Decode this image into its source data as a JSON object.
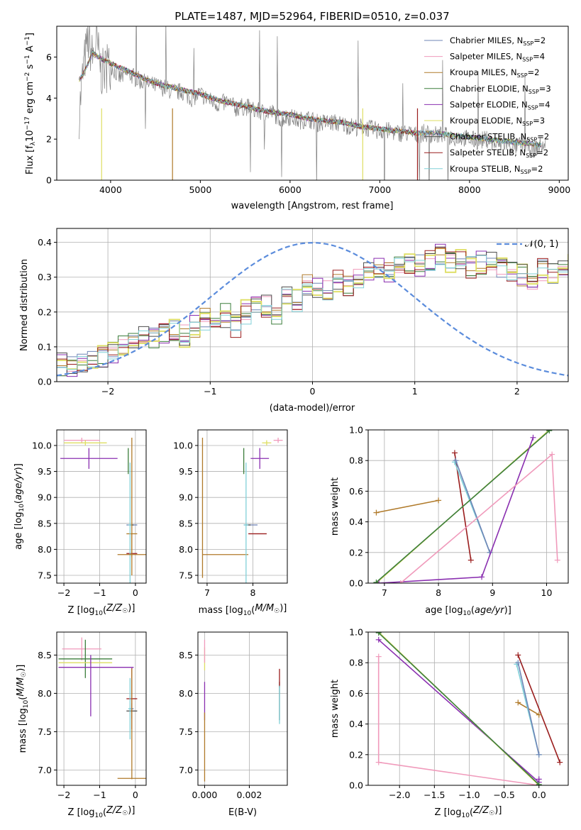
{
  "colors": [
    "#6f85b6",
    "#f09abb",
    "#b07a2a",
    "#3c7e3c",
    "#8a2fb0",
    "#dede62",
    "#4d4d4d",
    "#9a1d1d",
    "#80d0d8"
  ],
  "chart_data": [
    {
      "type": "line",
      "title": "PLATE=1487, MJD=52964, FIBERID=0510, z=0.037",
      "xlabel": "wavelength [Angstrom, rest frame]",
      "ylabel": "Flux [f_λ10^-17 erg cm^-2 s^-1 A^-1]",
      "xlim": [
        3400,
        9100
      ],
      "ylim": [
        0,
        7.5
      ],
      "xticks": [
        4000,
        5000,
        6000,
        7000,
        8000,
        9000
      ],
      "yticks": [
        0,
        2,
        4,
        6
      ],
      "data_color": "#808080",
      "data": {
        "x": [
          3650,
          3700,
          3750,
          3800,
          3850,
          3900,
          4000,
          4100,
          4200,
          4300,
          4400,
          4500,
          4600,
          4700,
          4800,
          4900,
          5000,
          5100,
          5200,
          5300,
          5400,
          5500,
          5600,
          5700,
          5800,
          5900,
          6000,
          6100,
          6200,
          6300,
          6400,
          6500,
          6600,
          6700,
          6800,
          6900,
          7000,
          7100,
          7200,
          7300,
          7400,
          7500,
          7600,
          7700,
          7800,
          7900,
          8000,
          8100,
          8200,
          8300,
          8400,
          8500,
          8600,
          8700,
          8800,
          8850
        ],
        "y": [
          3.2,
          5.6,
          6.8,
          6.0,
          6.6,
          5.2,
          5.6,
          5.0,
          5.2,
          4.9,
          4.7,
          4.6,
          4.5,
          4.3,
          4.3,
          4.0,
          4.2,
          3.9,
          3.7,
          3.8,
          3.5,
          3.6,
          3.4,
          3.3,
          3.3,
          3.0,
          3.1,
          2.9,
          3.0,
          2.8,
          2.8,
          2.8,
          2.7,
          2.6,
          2.6,
          2.5,
          2.4,
          2.4,
          2.3,
          2.3,
          2.2,
          2.3,
          2.2,
          2.2,
          2.1,
          2.1,
          2.0,
          1.9,
          2.0,
          1.7,
          1.8,
          1.6,
          1.8,
          1.5,
          1.7,
          1.6
        ]
      },
      "series": [
        {
          "name": "Chabrier MILES, N_SSP=2"
        },
        {
          "name": "Salpeter MILES, N_SSP=4"
        },
        {
          "name": "Kroupa MILES, N_SSP=2"
        },
        {
          "name": "Chabrier ELODIE, N_SSP=3"
        },
        {
          "name": "Salpeter ELODIE, N_SSP=4"
        },
        {
          "name": "Kroupa ELODIE, N_SSP=3"
        },
        {
          "name": "Chabrier STELIB, N_SSP=2"
        },
        {
          "name": "Salpeter STELIB, N_SSP=2"
        },
        {
          "name": "Kroupa STELIB, N_SSP=2"
        }
      ],
      "model": {
        "x": [
          3650,
          3700,
          3800,
          3900,
          4000,
          4200,
          4400,
          4600,
          4800,
          5000,
          5200,
          5400,
          5600,
          5800,
          6000,
          6200,
          6400,
          6600,
          6800,
          7000,
          7200,
          7400,
          7600,
          7800,
          8000,
          8200,
          8400,
          8600,
          8800
        ],
        "y": [
          4.9,
          5.2,
          6.2,
          5.9,
          5.7,
          5.3,
          4.9,
          4.6,
          4.4,
          4.2,
          3.9,
          3.7,
          3.5,
          3.3,
          3.2,
          3.0,
          2.9,
          2.8,
          2.6,
          2.5,
          2.4,
          2.3,
          2.3,
          2.2,
          2.1,
          2.0,
          1.9,
          1.8,
          1.7
        ]
      }
    },
    {
      "type": "histogram",
      "xlabel": "(data-model)/error",
      "ylabel": "Normed distribution",
      "xlim": [
        -2.5,
        2.5
      ],
      "ylim": [
        0,
        0.44
      ],
      "xticks": [
        -2,
        -1,
        0,
        1,
        2
      ],
      "yticks": [
        0.0,
        0.1,
        0.2,
        0.3,
        0.4
      ],
      "bin_start": -2.5,
      "bin_width": 0.1,
      "base_values": [
        0.05,
        0.04,
        0.06,
        0.07,
        0.07,
        0.08,
        0.1,
        0.11,
        0.13,
        0.12,
        0.14,
        0.15,
        0.13,
        0.16,
        0.18,
        0.17,
        0.19,
        0.16,
        0.2,
        0.21,
        0.22,
        0.19,
        0.24,
        0.23,
        0.28,
        0.27,
        0.26,
        0.29,
        0.28,
        0.3,
        0.31,
        0.32,
        0.31,
        0.33,
        0.34,
        0.33,
        0.35,
        0.36,
        0.34,
        0.35,
        0.33,
        0.34,
        0.35,
        0.33,
        0.32,
        0.31,
        0.3,
        0.32,
        0.31,
        0.34,
        0.33,
        0.32,
        0.3,
        0.31,
        0.29,
        0.27,
        0.26,
        0.25,
        0.26,
        0.23,
        0.22,
        0.21,
        0.2,
        0.19,
        0.18,
        0.17,
        0.15,
        0.16,
        0.14,
        0.13,
        0.12,
        0.11,
        0.1,
        0.11,
        0.09,
        0.1,
        0.08,
        0.07,
        0.08,
        0.07,
        0.06,
        0.07,
        0.06,
        0.05,
        0.06,
        0.05,
        0.05,
        0.04,
        0.05,
        0.04,
        0.03,
        0.04,
        0.03,
        0.03,
        0.04,
        0.03,
        0.03,
        0.02,
        0.03,
        0.02
      ],
      "normal": {
        "name": "𝒩(0, 1)",
        "color": "#5b8cdc"
      }
    },
    {
      "type": "scatter",
      "xlabel": "Z [log10(Z/Z☉)]",
      "ylabel": "age  [log10(age/yr)]",
      "xlim": [
        -2.2,
        0.3
      ],
      "ylim": [
        7.35,
        10.3
      ],
      "xticks": [
        -2,
        -1,
        0
      ],
      "yticks": [
        7.5,
        8.0,
        8.5,
        9.0,
        9.5,
        10.0,
        10.5
      ],
      "points": [
        {
          "c": 0,
          "x": -0.1,
          "y": 8.47,
          "xe": 0.15,
          "ye": 0.0
        },
        {
          "c": 1,
          "x": -1.5,
          "y": 10.1,
          "xe": 0.5,
          "ye": 0.05
        },
        {
          "c": 2,
          "x": -0.1,
          "y": 8.3,
          "xe": 0.15,
          "ye": 0.0
        },
        {
          "c": 3,
          "x": -0.2,
          "y": 9.7,
          "xe": 0.0,
          "ye": 0.25
        },
        {
          "c": 4,
          "x": -1.3,
          "y": 9.75,
          "xe": 0.8,
          "ye": 0.2
        },
        {
          "c": 5,
          "x": -1.4,
          "y": 10.05,
          "xe": 0.6,
          "ye": 0.05
        },
        {
          "c": 6,
          "x": -0.1,
          "y": 8.47,
          "xe": 0.05,
          "ye": 0.0
        },
        {
          "c": 7,
          "x": -0.1,
          "y": 7.92,
          "xe": 0.15,
          "ye": 0.0
        },
        {
          "c": 8,
          "x": -0.15,
          "y": 8.47,
          "xe": 0.05,
          "ye": 1.2
        },
        {
          "c": 2,
          "x": -0.1,
          "y": 7.9,
          "xe": 0.4,
          "ye": 0.4
        },
        {
          "c": 2,
          "x": -0.1,
          "y": 9.0,
          "xe": 0.0,
          "ye": 1.15
        }
      ]
    },
    {
      "type": "scatter",
      "xlabel": "mass [log10(M/M☉)]",
      "ylabel": "",
      "xlim": [
        6.8,
        8.75
      ],
      "ylim": [
        7.35,
        10.3
      ],
      "xticks": [
        7,
        8
      ],
      "yticks": [
        7.5,
        8.0,
        8.5,
        9.0,
        9.5,
        10.0,
        10.5
      ],
      "points": [
        {
          "c": 0,
          "x": 7.95,
          "y": 8.47,
          "xe": 0.15,
          "ye": 0.0
        },
        {
          "c": 1,
          "x": 8.55,
          "y": 10.1,
          "xe": 0.1,
          "ye": 0.05
        },
        {
          "c": 2,
          "x": 7.4,
          "y": 7.9,
          "xe": 0.5,
          "ye": 0.0
        },
        {
          "c": 3,
          "x": 7.8,
          "y": 9.7,
          "xe": 0.0,
          "ye": 0.25
        },
        {
          "c": 4,
          "x": 8.15,
          "y": 9.75,
          "xe": 0.2,
          "ye": 0.2
        },
        {
          "c": 5,
          "x": 8.3,
          "y": 10.05,
          "xe": 0.1,
          "ye": 0.05
        },
        {
          "c": 6,
          "x": 7.9,
          "y": 8.47,
          "xe": 0.05,
          "ye": 0.0
        },
        {
          "c": 7,
          "x": 8.1,
          "y": 8.3,
          "xe": 0.2,
          "ye": 0.0
        },
        {
          "c": 8,
          "x": 7.85,
          "y": 8.47,
          "xe": 0.05,
          "ye": 1.2
        },
        {
          "c": 2,
          "x": 6.9,
          "y": 8.8,
          "xe": 0.0,
          "ye": 1.35
        }
      ]
    },
    {
      "type": "line",
      "xlabel": "age  [log10(age/yr)]",
      "ylabel": "mass weight",
      "xlim": [
        6.7,
        10.4
      ],
      "ylim": [
        0,
        1.0
      ],
      "xticks": [
        7,
        8,
        9,
        10
      ],
      "yticks": [
        0.0,
        0.2,
        0.4,
        0.6,
        0.8,
        1.0
      ],
      "lines": [
        {
          "c": 2,
          "x": [
            6.85,
            8.0
          ],
          "y": [
            0.46,
            0.54
          ]
        },
        {
          "c": 7,
          "x": [
            8.3,
            8.6
          ],
          "y": [
            0.85,
            0.15
          ]
        },
        {
          "c": 8,
          "x": [
            8.3,
            8.95
          ],
          "y": [
            0.79,
            0.2
          ]
        },
        {
          "c": 0,
          "x": [
            8.32,
            8.95
          ],
          "y": [
            0.8,
            0.2
          ]
        },
        {
          "c": 5,
          "x": [
            6.85,
            10.05
          ],
          "y": [
            0.0,
            1.0
          ]
        },
        {
          "c": 3,
          "x": [
            6.85,
            10.05
          ],
          "y": [
            0.005,
            0.995
          ]
        },
        {
          "c": 4,
          "x": [
            6.9,
            8.8,
            9.75
          ],
          "y": [
            0.0,
            0.04,
            0.95
          ]
        },
        {
          "c": 1,
          "x": [
            7.3,
            10.1,
            10.2
          ],
          "y": [
            0.0,
            0.84,
            0.15
          ]
        }
      ]
    },
    {
      "type": "scatter",
      "xlabel": "Z [log10(Z/Z☉)]",
      "ylabel": "mass [log10(M/M☉)]",
      "xlim": [
        -2.2,
        0.3
      ],
      "ylim": [
        6.8,
        8.8
      ],
      "xticks": [
        -2,
        -1,
        0
      ],
      "yticks": [
        7.0,
        7.5,
        8.0,
        8.5
      ],
      "points": [
        {
          "c": 0,
          "x": -0.1,
          "y": 7.8,
          "xe": 0.05,
          "ye": 0.0
        },
        {
          "c": 1,
          "x": -1.5,
          "y": 8.58,
          "xe": 0.55,
          "ye": 0.15
        },
        {
          "c": 2,
          "x": -0.1,
          "y": 6.89,
          "xe": 0.4,
          "ye": 0.0
        },
        {
          "c": 3,
          "x": -1.4,
          "y": 8.45,
          "xe": 0.75,
          "ye": 0.25
        },
        {
          "c": 4,
          "x": -1.1,
          "y": 8.34,
          "xe": 1.05,
          "ye": 0.0
        },
        {
          "c": 5,
          "x": -1.4,
          "y": 8.4,
          "xe": 0.75,
          "ye": 0.0
        },
        {
          "c": 6,
          "x": -0.1,
          "y": 7.77,
          "xe": 0.15,
          "ye": 0.1
        },
        {
          "c": 7,
          "x": -0.1,
          "y": 7.93,
          "xe": 0.15,
          "ye": 0.4
        },
        {
          "c": 8,
          "x": -0.15,
          "y": 7.8,
          "xe": 0.05,
          "ye": 0.4
        },
        {
          "c": 4,
          "x": -1.25,
          "y": 8.1,
          "xe": 0.0,
          "ye": 0.4
        },
        {
          "c": 2,
          "x": -0.1,
          "y": 7.6,
          "xe": 0.0,
          "ye": 0.72
        }
      ]
    },
    {
      "type": "scatter",
      "xlabel": "E(B-V)",
      "ylabel": "",
      "xlim": [
        -0.0003,
        0.0037
      ],
      "ylim": [
        6.8,
        8.8
      ],
      "xticks": [
        0.0,
        0.002
      ],
      "yticks": [
        7.0,
        7.5,
        8.0,
        8.5
      ],
      "xticklabels": [
        "0.000",
        "0.002"
      ],
      "points": [
        {
          "c": 5,
          "x": 0.0,
          "y": 8.45,
          "xe": 0.0,
          "ye": 0.15
        },
        {
          "c": 4,
          "x": 0.0,
          "y": 7.9,
          "xe": 0.0,
          "ye": 0.25
        },
        {
          "c": 1,
          "x": 0.0,
          "y": 8.55,
          "xe": 0.0,
          "ye": 0.15
        },
        {
          "c": 2,
          "x": 0.0,
          "y": 7.3,
          "xe": 0.0,
          "ye": 0.45
        },
        {
          "c": 6,
          "x": 0.00335,
          "y": 7.9,
          "xe": 0.0,
          "ye": 0.25
        },
        {
          "c": 7,
          "x": 0.00335,
          "y": 8.2,
          "xe": 0.0,
          "ye": 0.12
        },
        {
          "c": 8,
          "x": 0.00335,
          "y": 7.85,
          "xe": 0.0,
          "ye": 0.25
        }
      ]
    },
    {
      "type": "line",
      "xlabel": "Z [log10(Z/Z☉)]",
      "ylabel": "mass weight",
      "xlim": [
        -2.45,
        0.42
      ],
      "ylim": [
        0,
        1.0
      ],
      "xticks": [
        -2.0,
        -1.5,
        -1.0,
        -0.5,
        0.0
      ],
      "xticklabels": [
        "−2.0",
        "−1.5",
        "−1.0",
        "−0.5",
        "0.0"
      ],
      "yticks": [
        0.0,
        0.2,
        0.4,
        0.6,
        0.8,
        1.0
      ],
      "lines": [
        {
          "c": 1,
          "x": [
            -2.3,
            -2.3,
            0.0
          ],
          "y": [
            0.84,
            0.15,
            0.0
          ]
        },
        {
          "c": 4,
          "x": [
            -2.3,
            0.0,
            0.0
          ],
          "y": [
            0.95,
            0.02,
            0.04
          ]
        },
        {
          "c": 5,
          "x": [
            -2.3,
            0.0
          ],
          "y": [
            1.0,
            0.0
          ]
        },
        {
          "c": 3,
          "x": [
            -2.3,
            0.0
          ],
          "y": [
            0.995,
            0.005
          ]
        },
        {
          "c": 7,
          "x": [
            -0.3,
            0.3
          ],
          "y": [
            0.85,
            0.15
          ]
        },
        {
          "c": 2,
          "x": [
            -0.3,
            0.0
          ],
          "y": [
            0.54,
            0.46
          ]
        },
        {
          "c": 8,
          "x": [
            -0.32,
            0.0
          ],
          "y": [
            0.79,
            0.2
          ]
        },
        {
          "c": 0,
          "x": [
            -0.3,
            0.0
          ],
          "y": [
            0.8,
            0.2
          ]
        }
      ]
    }
  ]
}
